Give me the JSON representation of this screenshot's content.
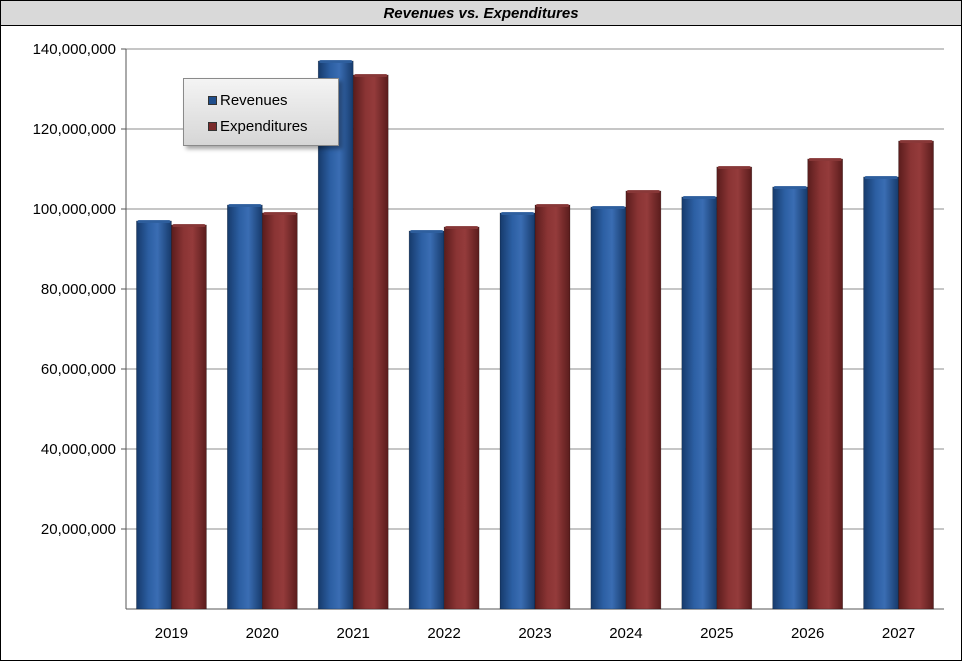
{
  "chart_data": {
    "type": "bar",
    "title": "Revenues vs. Expenditures",
    "categories": [
      "2019",
      "2020",
      "2021",
      "2022",
      "2023",
      "2024",
      "2025",
      "2026",
      "2027"
    ],
    "series": [
      {
        "name": "Revenues",
        "color": "#1f4e8c",
        "values": [
          97000000,
          101000000,
          137000000,
          94500000,
          99000000,
          100500000,
          103000000,
          105500000,
          108000000
        ]
      },
      {
        "name": "Expenditures",
        "color": "#7a2a2a",
        "values": [
          96000000,
          99000000,
          133500000,
          95500000,
          101000000,
          104500000,
          110500000,
          112500000,
          117000000
        ]
      }
    ],
    "ylim": [
      0,
      140000000
    ],
    "yticks": [
      "20,000,000",
      "40,000,000",
      "60,000,000",
      "80,000,000",
      "100,000,000",
      "120,000,000",
      "140,000,000"
    ],
    "ytick_values": [
      20000000,
      40000000,
      60000000,
      80000000,
      100000000,
      120000000,
      140000000
    ],
    "grid": true,
    "legend_position": "top-left"
  }
}
